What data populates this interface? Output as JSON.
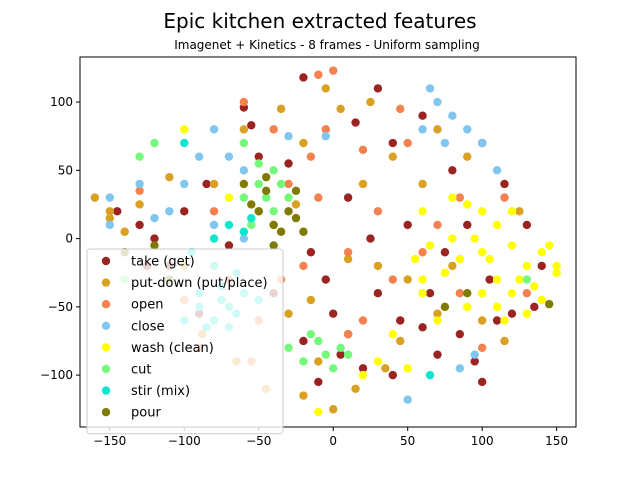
{
  "chart_data": {
    "type": "scatter",
    "title": "Epic kitchen extracted features",
    "subtitle": "Imagenet + Kinetics - 8 frames - Uniform sampling",
    "xlabel": "",
    "ylabel": "",
    "xlim": [
      -170,
      163
    ],
    "ylim": [
      -138,
      133
    ],
    "xticks": [
      -150,
      -100,
      -50,
      0,
      50,
      100,
      150
    ],
    "yticks": [
      -100,
      -50,
      0,
      50,
      100
    ],
    "grid": false,
    "legend_position": "lower-left",
    "series": [
      {
        "name": "take (get)",
        "color": "#9b2423",
        "points": [
          [
            -20,
            118
          ],
          [
            -60,
            96
          ],
          [
            -55,
            83
          ],
          [
            -100,
            20
          ],
          [
            -120,
            0
          ],
          [
            -70,
            -5
          ],
          [
            -15,
            -10
          ],
          [
            -5,
            -30
          ],
          [
            0,
            -55
          ],
          [
            10,
            -70
          ],
          [
            20,
            -95
          ],
          [
            -10,
            -105
          ],
          [
            40,
            70
          ],
          [
            60,
            90
          ],
          [
            80,
            50
          ],
          [
            90,
            10
          ],
          [
            105,
            -30
          ],
          [
            110,
            -60
          ],
          [
            120,
            -55
          ],
          [
            95,
            -90
          ],
          [
            70,
            -85
          ],
          [
            45,
            -60
          ],
          [
            30,
            -40
          ],
          [
            50,
            10
          ],
          [
            75,
            -10
          ],
          [
            130,
            10
          ],
          [
            140,
            -20
          ],
          [
            -130,
            10
          ],
          [
            -145,
            20
          ],
          [
            -85,
            40
          ],
          [
            -30,
            55
          ],
          [
            10,
            30
          ],
          [
            25,
            0
          ],
          [
            65,
            -40
          ],
          [
            85,
            -70
          ],
          [
            -40,
            -40
          ],
          [
            5,
            -85
          ],
          [
            -20,
            -75
          ],
          [
            115,
            40
          ],
          [
            135,
            -50
          ],
          [
            -110,
            -20
          ],
          [
            -90,
            -55
          ],
          [
            40,
            -100
          ],
          [
            60,
            -65
          ],
          [
            15,
            85
          ],
          [
            -50,
            60
          ],
          [
            30,
            110
          ],
          [
            100,
            70
          ],
          [
            100,
            -105
          ],
          [
            -125,
            -20
          ]
        ]
      },
      {
        "name": "put-down (put/place)",
        "color": "#daa021",
        "points": [
          [
            -150,
            20
          ],
          [
            -140,
            5
          ],
          [
            -130,
            25
          ],
          [
            -100,
            -20
          ],
          [
            -80,
            40
          ],
          [
            -75,
            -45
          ],
          [
            -40,
            10
          ],
          [
            -20,
            70
          ],
          [
            -5,
            110
          ],
          [
            5,
            95
          ],
          [
            25,
            100
          ],
          [
            40,
            60
          ],
          [
            60,
            40
          ],
          [
            80,
            -20
          ],
          [
            100,
            -60
          ],
          [
            -30,
            -55
          ],
          [
            -10,
            -90
          ],
          [
            0,
            -125
          ],
          [
            15,
            -110
          ],
          [
            -20,
            -115
          ],
          [
            -60,
            80
          ],
          [
            -50,
            20
          ],
          [
            30,
            -20
          ],
          [
            70,
            80
          ],
          [
            90,
            60
          ],
          [
            -110,
            45
          ],
          [
            20,
            40
          ],
          [
            50,
            -30
          ],
          [
            -150,
            15
          ],
          [
            -88,
            -70
          ],
          [
            -65,
            -90
          ],
          [
            -45,
            -110
          ],
          [
            35,
            -95
          ],
          [
            45,
            -75
          ],
          [
            70,
            -55
          ],
          [
            115,
            -75
          ],
          [
            125,
            20
          ],
          [
            -15,
            -45
          ],
          [
            -35,
            95
          ],
          [
            10,
            -15
          ],
          [
            -25,
            25
          ],
          [
            -160,
            30
          ]
        ]
      },
      {
        "name": "open",
        "color": "#f4814e",
        "points": [
          [
            -10,
            120
          ],
          [
            0,
            123
          ],
          [
            -60,
            100
          ],
          [
            -40,
            80
          ],
          [
            -30,
            40
          ],
          [
            -10,
            30
          ],
          [
            10,
            -10
          ],
          [
            30,
            20
          ],
          [
            50,
            70
          ],
          [
            70,
            10
          ],
          [
            85,
            -40
          ],
          [
            100,
            -80
          ],
          [
            -20,
            -20
          ],
          [
            -50,
            -60
          ],
          [
            -100,
            -45
          ],
          [
            -90,
            -80
          ],
          [
            -55,
            -90
          ],
          [
            10,
            -70
          ],
          [
            20,
            -60
          ],
          [
            40,
            -30
          ],
          [
            60,
            -10
          ],
          [
            130,
            -40
          ],
          [
            115,
            30
          ],
          [
            -130,
            35
          ],
          [
            -80,
            20
          ],
          [
            -5,
            80
          ],
          [
            45,
            95
          ],
          [
            85,
            30
          ],
          [
            -35,
            -30
          ],
          [
            20,
            65
          ],
          [
            -70,
            -30
          ],
          [
            -15,
            60
          ]
        ]
      },
      {
        "name": "close",
        "color": "#80c6ef",
        "points": [
          [
            -80,
            80
          ],
          [
            -90,
            60
          ],
          [
            -70,
            60
          ],
          [
            -100,
            40
          ],
          [
            -130,
            40
          ],
          [
            -110,
            20
          ],
          [
            -80,
            10
          ],
          [
            -60,
            0
          ],
          [
            -150,
            30
          ],
          [
            60,
            80
          ],
          [
            80,
            90
          ],
          [
            90,
            80
          ],
          [
            100,
            70
          ],
          [
            65,
            110
          ],
          [
            70,
            100
          ],
          [
            50,
            -118
          ],
          [
            95,
            -85
          ],
          [
            85,
            -95
          ],
          [
            -150,
            10
          ],
          [
            -140,
            -10
          ],
          [
            -60,
            50
          ],
          [
            -30,
            75
          ],
          [
            75,
            70
          ],
          [
            -5,
            75
          ],
          [
            -120,
            15
          ],
          [
            110,
            50
          ]
        ]
      },
      {
        "name": "wash (clean)",
        "color": "#ffff00",
        "points": [
          [
            60,
            20
          ],
          [
            80,
            0
          ],
          [
            100,
            -10
          ],
          [
            110,
            -30
          ],
          [
            120,
            -40
          ],
          [
            130,
            -20
          ],
          [
            140,
            -10
          ],
          [
            150,
            -20
          ],
          [
            90,
            -50
          ],
          [
            100,
            -40
          ],
          [
            70,
            -60
          ],
          [
            110,
            10
          ],
          [
            120,
            -5
          ],
          [
            130,
            -55
          ],
          [
            140,
            -45
          ],
          [
            150,
            -25
          ],
          [
            80,
            30
          ],
          [
            100,
            20
          ],
          [
            120,
            20
          ],
          [
            60,
            -30
          ],
          [
            40,
            -70
          ],
          [
            30,
            -90
          ],
          [
            20,
            -100
          ],
          [
            50,
            -95
          ],
          [
            -10,
            -127
          ],
          [
            60,
            -40
          ],
          [
            75,
            -25
          ],
          [
            85,
            -15
          ],
          [
            95,
            0
          ],
          [
            105,
            -15
          ],
          [
            115,
            -60
          ],
          [
            125,
            -30
          ],
          [
            135,
            -35
          ],
          [
            55,
            -15
          ],
          [
            65,
            -5
          ],
          [
            90,
            25
          ],
          [
            145,
            -5
          ],
          [
            110,
            -50
          ],
          [
            -100,
            80
          ],
          [
            -70,
            30
          ]
        ]
      },
      {
        "name": "cut",
        "color": "#74f97b",
        "points": [
          [
            -10,
            -75
          ],
          [
            -5,
            -85
          ],
          [
            5,
            -80
          ],
          [
            -20,
            -90
          ],
          [
            0,
            -95
          ],
          [
            10,
            -85
          ],
          [
            -15,
            -70
          ],
          [
            -30,
            -80
          ],
          [
            -60,
            30
          ],
          [
            -50,
            40
          ],
          [
            -40,
            50
          ],
          [
            -45,
            30
          ],
          [
            -55,
            10
          ],
          [
            -130,
            60
          ],
          [
            -120,
            70
          ],
          [
            -60,
            70
          ],
          [
            -40,
            20
          ],
          [
            -30,
            30
          ],
          [
            -140,
            -30
          ],
          [
            130,
            -30
          ],
          [
            -50,
            55
          ],
          [
            -35,
            40
          ]
        ]
      },
      {
        "name": "stir (mix)",
        "color": "#0fe6cd",
        "points": [
          [
            -80,
            -60
          ],
          [
            -70,
            -50
          ],
          [
            -60,
            -40
          ],
          [
            -90,
            -50
          ],
          [
            -75,
            -35
          ],
          [
            -85,
            -65
          ],
          [
            -65,
            -55
          ],
          [
            -100,
            -60
          ],
          [
            -75,
            -45
          ],
          [
            -90,
            -40
          ],
          [
            -70,
            -65
          ],
          [
            -50,
            -45
          ],
          [
            -80,
            0
          ],
          [
            -70,
            10
          ],
          [
            -100,
            70
          ],
          [
            -55,
            15
          ],
          [
            -80,
            -20
          ],
          [
            65,
            -100
          ],
          [
            -65,
            -25
          ],
          [
            -60,
            5
          ],
          [
            -95,
            -10
          ]
        ]
      },
      {
        "name": "pour",
        "color": "#7f7a00",
        "points": [
          [
            -50,
            20
          ],
          [
            -40,
            10
          ],
          [
            -30,
            20
          ],
          [
            -45,
            35
          ],
          [
            -55,
            25
          ],
          [
            -35,
            5
          ],
          [
            -25,
            35
          ],
          [
            -40,
            -5
          ],
          [
            -120,
            -5
          ],
          [
            -140,
            -10
          ],
          [
            -110,
            -30
          ],
          [
            -60,
            40
          ],
          [
            -25,
            15
          ],
          [
            -45,
            45
          ],
          [
            -20,
            5
          ],
          [
            75,
            -50
          ],
          [
            90,
            -40
          ],
          [
            145,
            -48
          ]
        ]
      }
    ]
  }
}
